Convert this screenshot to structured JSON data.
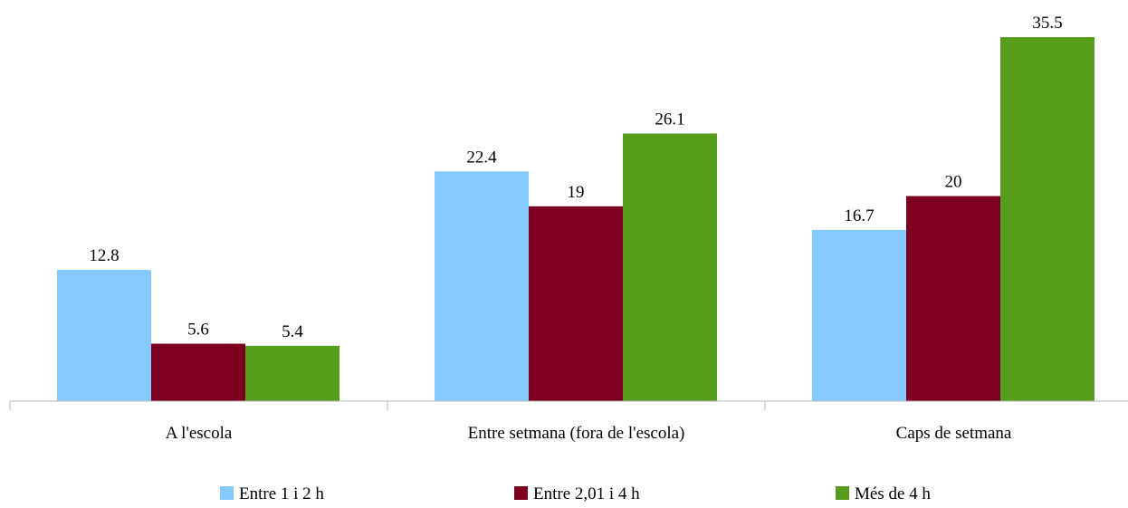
{
  "chart_data": {
    "type": "bar",
    "title": "",
    "xlabel": "",
    "ylabel": "",
    "categories": [
      "A l'escola",
      "Entre setmana (fora de l'escola)",
      "Caps de setmana"
    ],
    "series": [
      {
        "name": "Entre 1 i 2 h",
        "color": "#85CAFF",
        "values": [
          12.8,
          22.4,
          16.7
        ]
      },
      {
        "name": "Entre 2,01 i 4 h",
        "color": "#7E0021",
        "values": [
          5.6,
          19,
          20
        ]
      },
      {
        "name": "Més de 4 h",
        "color": "#579D1C",
        "values": [
          5.4,
          26.1,
          35.5
        ]
      }
    ],
    "ylim": [
      0,
      36
    ],
    "grid": false,
    "y_axis_visible": false,
    "data_labels": true,
    "legend": {
      "placement": "bottom"
    }
  }
}
